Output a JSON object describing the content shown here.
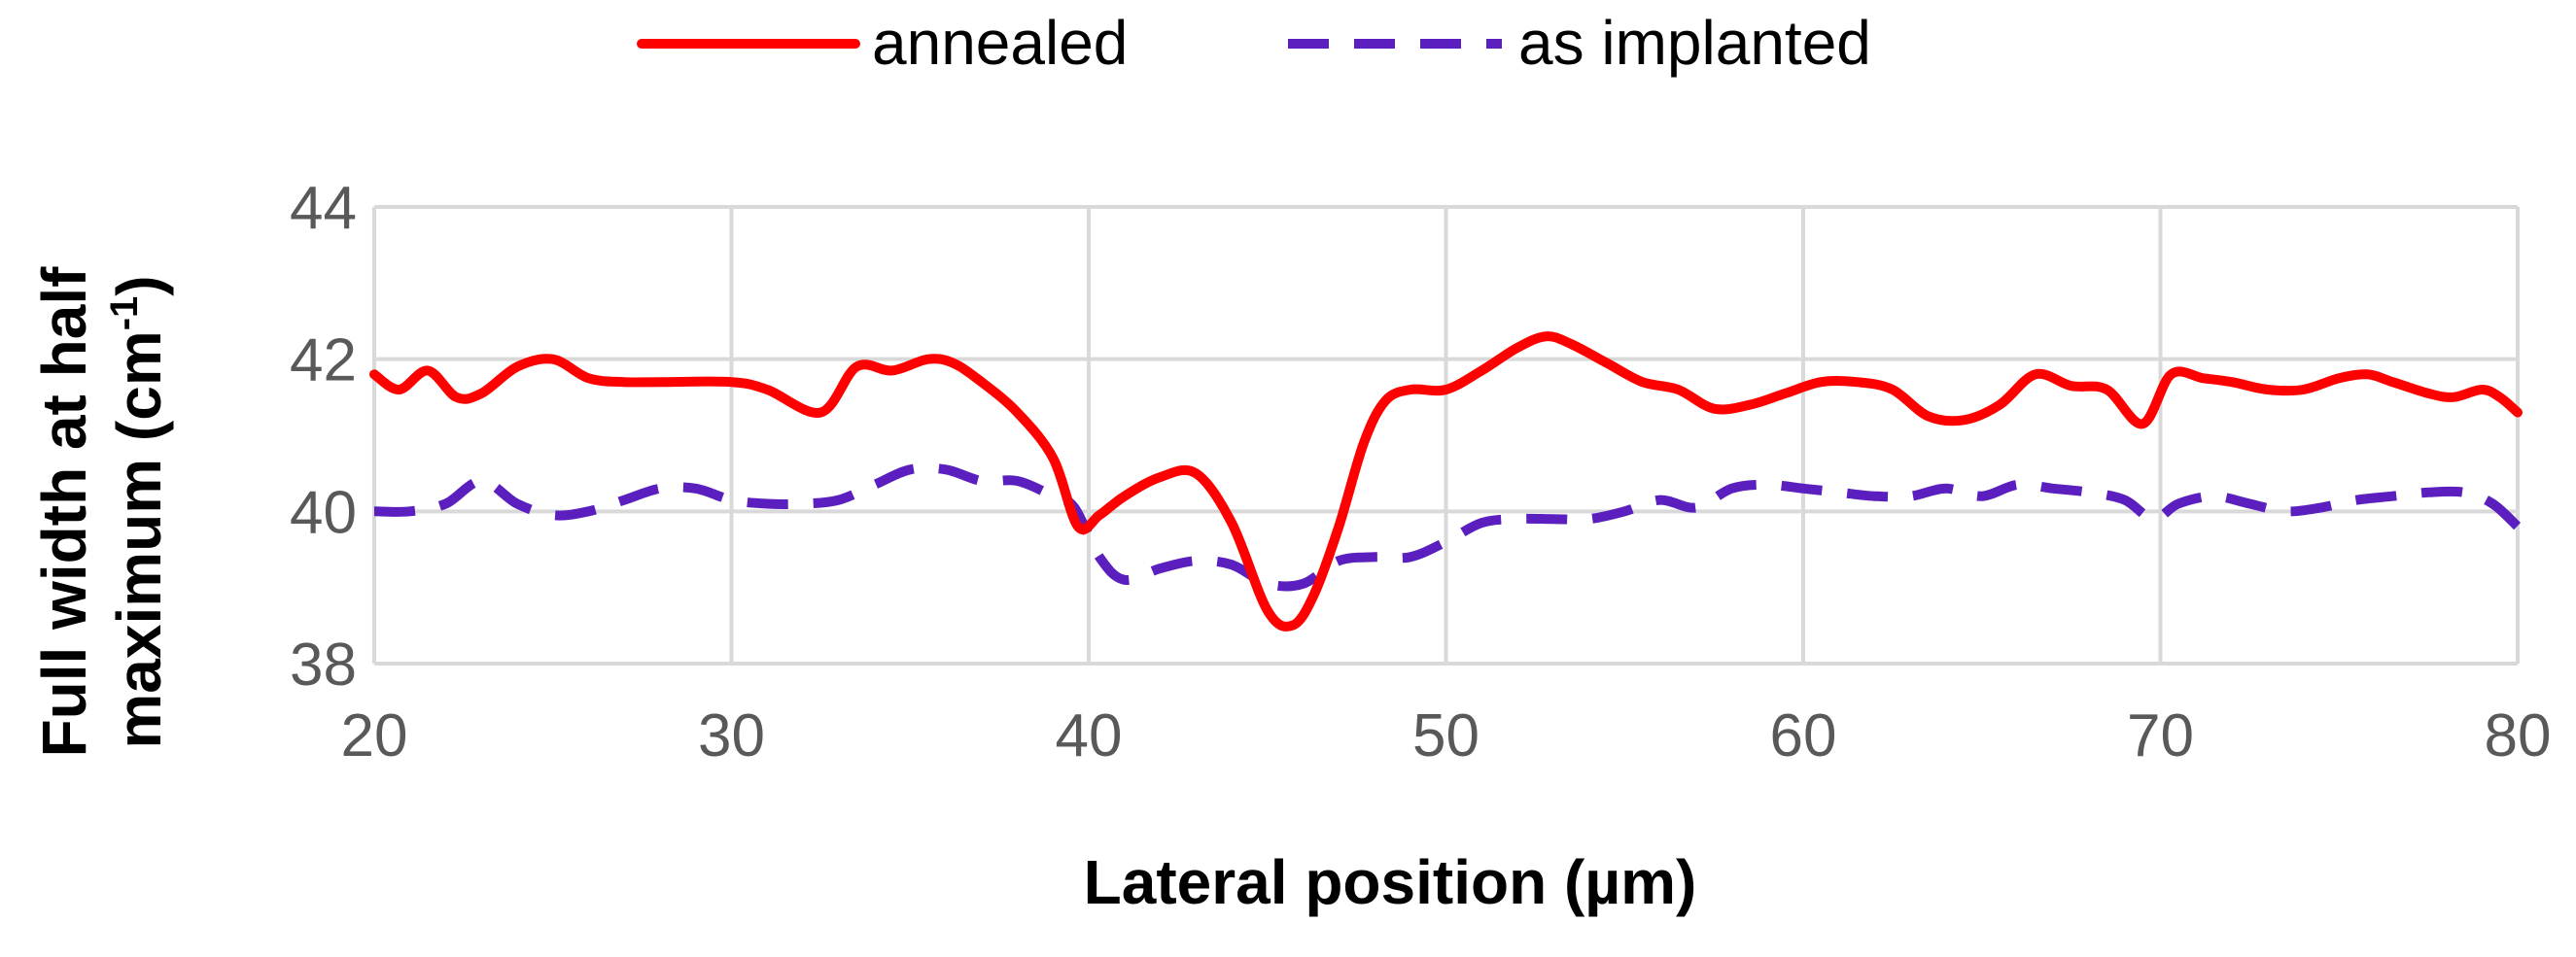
{
  "chart_data": {
    "type": "line",
    "title": "",
    "xlabel": "Lateral position (µm)",
    "ylabel_line1": "Full width at half",
    "ylabel_line2_base": "maximum (cm",
    "ylabel_line2_sup": "-1",
    "ylabel_line2_end": ")",
    "xlim": [
      20,
      80
    ],
    "ylim": [
      38,
      44
    ],
    "xticks": [
      20,
      30,
      40,
      50,
      60,
      70,
      80
    ],
    "yticks": [
      38,
      40,
      42,
      44
    ],
    "grid": true,
    "legend_position": "top",
    "series": [
      {
        "name": "annealed",
        "color": "#ff0000",
        "dash": "solid",
        "x": [
          20,
          20.7,
          21.5,
          22.3,
          23,
          24,
          25,
          26,
          27,
          28,
          30,
          31,
          32.5,
          33.5,
          34.5,
          35.5,
          36.2,
          37,
          38,
          39,
          39.7,
          40.3,
          41,
          42,
          43,
          44,
          45,
          45.7,
          46.3,
          47,
          47.7,
          48.3,
          49,
          50,
          51,
          52,
          52.8,
          53.5,
          54.5,
          55.5,
          56.5,
          57.5,
          58.5,
          59.5,
          60.5,
          61.5,
          62.5,
          63.5,
          64.5,
          65.5,
          66.5,
          67.5,
          68.5,
          69.5,
          70.3,
          71.2,
          72,
          73,
          74,
          75,
          75.8,
          76.5,
          77.5,
          78.2,
          79,
          79.5,
          80
        ],
        "y": [
          41.8,
          41.6,
          41.85,
          41.5,
          41.55,
          41.9,
          42.0,
          41.75,
          41.7,
          41.7,
          41.7,
          41.6,
          41.3,
          41.9,
          41.85,
          42.0,
          41.95,
          41.7,
          41.3,
          40.7,
          39.8,
          39.95,
          40.2,
          40.45,
          40.5,
          39.85,
          38.7,
          38.5,
          38.9,
          39.8,
          40.9,
          41.45,
          41.6,
          41.6,
          41.85,
          42.15,
          42.3,
          42.2,
          41.95,
          41.7,
          41.6,
          41.35,
          41.4,
          41.55,
          41.7,
          41.7,
          41.6,
          41.25,
          41.2,
          41.4,
          41.8,
          41.65,
          41.6,
          41.15,
          41.8,
          41.75,
          41.7,
          41.6,
          41.6,
          41.75,
          41.8,
          41.7,
          41.55,
          41.5,
          41.6,
          41.5,
          41.3
        ]
      },
      {
        "name": "as implanted",
        "color": "#5b1fbf",
        "dash": "dashed",
        "x": [
          20,
          21,
          22,
          23,
          24,
          25,
          26,
          27,
          28,
          29,
          30,
          31,
          32,
          33,
          34,
          35,
          36,
          37,
          38,
          39,
          39.6,
          40.3,
          41,
          42,
          43,
          44,
          45,
          46,
          47,
          48,
          49,
          50,
          51,
          52,
          53,
          54,
          55,
          56,
          57,
          58,
          59,
          60,
          61,
          62,
          63,
          64,
          65,
          66,
          67,
          68,
          69,
          69.8,
          70.5,
          71.5,
          72.5,
          73.5,
          74.5,
          75.5,
          76.5,
          77.5,
          78.5,
          79.3,
          80
        ],
        "y": [
          40.0,
          40.0,
          40.1,
          40.4,
          40.1,
          39.95,
          40.0,
          40.15,
          40.3,
          40.3,
          40.15,
          40.1,
          40.1,
          40.15,
          40.35,
          40.55,
          40.55,
          40.4,
          40.4,
          40.2,
          40.05,
          39.4,
          39.1,
          39.25,
          39.35,
          39.3,
          39.05,
          39.05,
          39.35,
          39.4,
          39.4,
          39.6,
          39.85,
          39.9,
          39.9,
          39.9,
          40.0,
          40.15,
          40.05,
          40.3,
          40.35,
          40.3,
          40.25,
          40.2,
          40.2,
          40.3,
          40.2,
          40.35,
          40.3,
          40.25,
          40.15,
          39.9,
          40.1,
          40.2,
          40.1,
          40.0,
          40.05,
          40.15,
          40.2,
          40.25,
          40.25,
          40.1,
          39.8
        ]
      }
    ]
  }
}
